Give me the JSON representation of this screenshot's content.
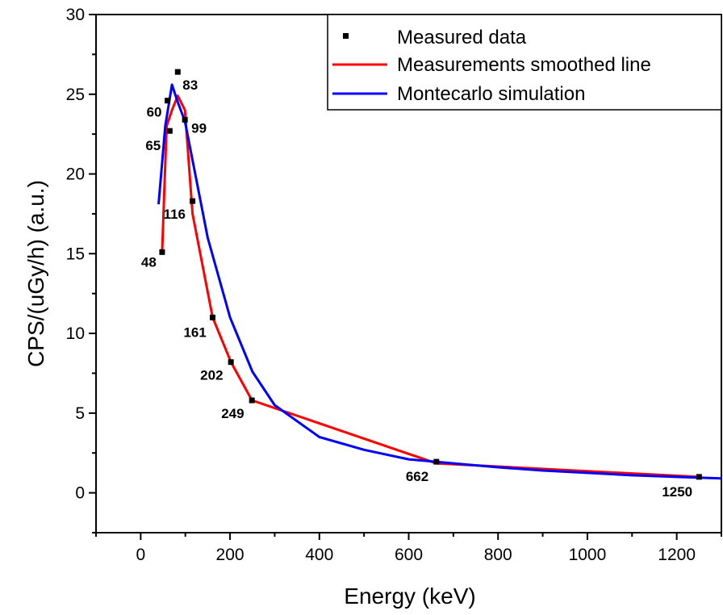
{
  "chart_data": {
    "type": "line",
    "title": "",
    "xlabel": "Energy (keV)",
    "ylabel": "CPS/(uGy/h) (a.u.)",
    "xlim": [
      -100,
      1300
    ],
    "ylim": [
      -2.5,
      30
    ],
    "xticks": [
      0,
      200,
      400,
      600,
      800,
      1000,
      1200
    ],
    "yticks": [
      0,
      5,
      10,
      15,
      20,
      25,
      30
    ],
    "grid": false,
    "legend_position": "top-right",
    "series": [
      {
        "name": "Measured data",
        "style": "markers",
        "color": "#000000",
        "x": [
          48,
          60,
          65,
          83,
          99,
          116,
          161,
          202,
          249,
          662,
          1250
        ],
        "y": [
          15.1,
          24.6,
          22.7,
          26.4,
          23.4,
          18.3,
          11.0,
          8.2,
          5.8,
          1.95,
          1.0
        ]
      },
      {
        "name": "Measurements smoothed line",
        "style": "line",
        "color": "#ff0000",
        "x": [
          48,
          58,
          70,
          83,
          99,
          116,
          161,
          202,
          249,
          662,
          1250
        ],
        "y": [
          15.1,
          23.0,
          24.0,
          24.9,
          24.0,
          17.5,
          11.0,
          8.2,
          5.8,
          1.85,
          1.0
        ]
      },
      {
        "name": "Montecarlo simulation",
        "style": "line",
        "color": "#0000ff",
        "x": [
          40,
          55,
          70,
          83,
          99,
          150,
          200,
          250,
          300,
          400,
          500,
          600,
          700,
          800,
          900,
          1000,
          1100,
          1200,
          1300
        ],
        "y": [
          18.1,
          23.0,
          25.6,
          24.5,
          23.3,
          16.0,
          11.0,
          7.6,
          5.5,
          3.5,
          2.7,
          2.1,
          1.85,
          1.6,
          1.4,
          1.25,
          1.1,
          1.0,
          0.9
        ]
      }
    ],
    "point_labels": [
      {
        "text": "48",
        "x": 48,
        "y": 15.1,
        "dx": -26,
        "dy": 18
      },
      {
        "text": "60",
        "x": 60,
        "y": 24.6,
        "dx": -26,
        "dy": 20
      },
      {
        "text": "65",
        "x": 65,
        "y": 22.7,
        "dx": -30,
        "dy": 24
      },
      {
        "text": "83",
        "x": 83,
        "y": 26.4,
        "dx": 6,
        "dy": 22
      },
      {
        "text": "99",
        "x": 99,
        "y": 23.4,
        "dx": 8,
        "dy": 16
      },
      {
        "text": "116",
        "x": 116,
        "y": 18.3,
        "dx": -36,
        "dy": 22
      },
      {
        "text": "161",
        "x": 161,
        "y": 11.0,
        "dx": -36,
        "dy": 24
      },
      {
        "text": "202",
        "x": 202,
        "y": 8.2,
        "dx": -38,
        "dy": 22
      },
      {
        "text": "249",
        "x": 249,
        "y": 5.8,
        "dx": -38,
        "dy": 22
      },
      {
        "text": "662",
        "x": 662,
        "y": 1.95,
        "dx": -38,
        "dy": 24
      },
      {
        "text": "1250",
        "x": 1250,
        "y": 1.0,
        "dx": -46,
        "dy": 24
      }
    ]
  }
}
